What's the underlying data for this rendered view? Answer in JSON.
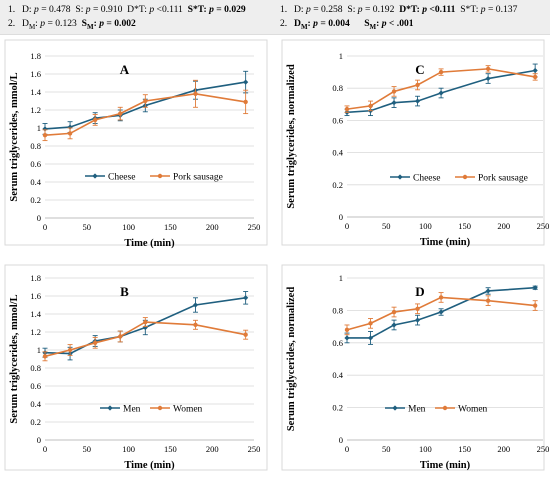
{
  "header": {
    "left": [
      {
        "num": "1.",
        "parts": [
          {
            "t": "D: "
          },
          {
            "t": "p",
            "i": true
          },
          {
            "t": " = 0.478  S: "
          },
          {
            "t": "p",
            "i": true
          },
          {
            "t": " = 0.910  D*T: "
          },
          {
            "t": "p",
            "i": true
          },
          {
            "t": " <0.111  "
          },
          {
            "t": "S*T: ",
            "b": true
          },
          {
            "t": "p",
            "b": true,
            "i": true
          },
          {
            "t": " = 0.029",
            "b": true
          }
        ]
      },
      {
        "num": "2.",
        "parts": [
          {
            "t": "D"
          },
          {
            "t": "M",
            "sub": true
          },
          {
            "t": ": "
          },
          {
            "t": "p",
            "i": true
          },
          {
            "t": " = 0.123  "
          },
          {
            "t": "S",
            "b": true
          },
          {
            "t": "M",
            "b": true,
            "sub": true
          },
          {
            "t": ": ",
            "b": true
          },
          {
            "t": "p",
            "b": true,
            "i": true
          },
          {
            "t": " = 0.002",
            "b": true
          }
        ]
      }
    ],
    "right": [
      {
        "num": "1.",
        "parts": [
          {
            "t": "D: "
          },
          {
            "t": "p",
            "i": true
          },
          {
            "t": " = 0.258  S: "
          },
          {
            "t": "p",
            "i": true
          },
          {
            "t": " = 0.192  "
          },
          {
            "t": "D*T: ",
            "b": true
          },
          {
            "t": "p",
            "b": true,
            "i": true
          },
          {
            "t": " <0.111",
            "b": true
          },
          {
            "t": "  S*T: "
          },
          {
            "t": "p",
            "i": true
          },
          {
            "t": " = 0.137"
          }
        ]
      },
      {
        "num": "2.",
        "parts": [
          {
            "t": "D",
            "b": true
          },
          {
            "t": "M",
            "b": true,
            "sub": true
          },
          {
            "t": ": ",
            "b": true
          },
          {
            "t": "p",
            "b": true,
            "i": true
          },
          {
            "t": " = 0.004",
            "b": true
          },
          {
            "t": "      "
          },
          {
            "t": "S",
            "b": true
          },
          {
            "t": "M",
            "b": true,
            "sub": true
          },
          {
            "t": ": ",
            "b": true
          },
          {
            "t": "p",
            "b": true,
            "i": true
          },
          {
            "t": " < .001",
            "b": true
          }
        ]
      }
    ]
  },
  "chart_data": [
    {
      "panel": "A",
      "type": "line",
      "ylabel": "Serum triglycerides, mmol/L",
      "xlabel": "Time (min)",
      "xlim": [
        0,
        250
      ],
      "xticks": [
        0,
        50,
        100,
        150,
        200,
        250
      ],
      "ylim": [
        0,
        1.8
      ],
      "yticks": [
        0,
        0.2,
        0.4,
        0.6,
        0.8,
        1.0,
        1.2,
        1.4,
        1.6,
        1.8
      ],
      "ytick_labels": [
        "0",
        "0.2",
        "0.4",
        "0.6",
        "0.8",
        "1",
        "1.2",
        "1.4",
        "1.6",
        "1.8"
      ],
      "legend": "inside-center",
      "series": [
        {
          "name": "Cheese",
          "color": "#1f5f7f",
          "marker": "diamond",
          "x": [
            0,
            30,
            60,
            90,
            120,
            180,
            240
          ],
          "y": [
            0.99,
            1.01,
            1.11,
            1.14,
            1.25,
            1.42,
            1.51
          ],
          "err": [
            0.06,
            0.06,
            0.06,
            0.06,
            0.07,
            0.1,
            0.12
          ]
        },
        {
          "name": "Pork sausage",
          "color": "#e07b39",
          "marker": "circle",
          "x": [
            0,
            30,
            60,
            90,
            120,
            180,
            240
          ],
          "y": [
            0.92,
            0.94,
            1.09,
            1.16,
            1.3,
            1.38,
            1.29
          ],
          "err": [
            0.06,
            0.06,
            0.06,
            0.07,
            0.07,
            0.15,
            0.13
          ]
        }
      ]
    },
    {
      "panel": "C",
      "type": "line",
      "ylabel": "Serum triglycerides, normalized",
      "xlabel": "Time (min)",
      "xlim": [
        0,
        250
      ],
      "xticks": [
        0,
        50,
        100,
        150,
        200,
        250
      ],
      "ylim": [
        0,
        1
      ],
      "yticks": [
        0,
        0.2,
        0.4,
        0.6,
        0.8,
        1.0
      ],
      "ytick_labels": [
        "0",
        "0.2",
        "0.4",
        "0.6",
        "0.8",
        "1"
      ],
      "legend": "inside-center",
      "series": [
        {
          "name": "Cheese",
          "color": "#1f5f7f",
          "marker": "diamond",
          "x": [
            0,
            30,
            60,
            90,
            120,
            180,
            240
          ],
          "y": [
            0.65,
            0.66,
            0.71,
            0.72,
            0.77,
            0.86,
            0.91
          ],
          "err": [
            0.02,
            0.03,
            0.03,
            0.03,
            0.03,
            0.03,
            0.04
          ]
        },
        {
          "name": "Pork sausage",
          "color": "#e07b39",
          "marker": "circle",
          "x": [
            0,
            30,
            60,
            90,
            120,
            180,
            240
          ],
          "y": [
            0.67,
            0.69,
            0.78,
            0.82,
            0.9,
            0.92,
            0.87
          ],
          "err": [
            0.02,
            0.03,
            0.03,
            0.03,
            0.02,
            0.02,
            0.02
          ]
        }
      ]
    },
    {
      "panel": "B",
      "type": "line",
      "ylabel": "Serum triglycerides, mmol/L",
      "xlabel": "Time (min)",
      "xlim": [
        0,
        250
      ],
      "xticks": [
        0,
        50,
        100,
        150,
        200,
        250
      ],
      "ylim": [
        0,
        1.8
      ],
      "yticks": [
        0,
        0.2,
        0.4,
        0.6,
        0.8,
        1.0,
        1.2,
        1.4,
        1.6,
        1.8
      ],
      "ytick_labels": [
        "0",
        "0.2",
        "0.4",
        "0.6",
        "0.8",
        "1",
        "1.2",
        "1.4",
        "1.6",
        "1.8"
      ],
      "legend": "inside-bottom-center",
      "series": [
        {
          "name": "Men",
          "color": "#1f5f7f",
          "marker": "diamond",
          "x": [
            0,
            30,
            60,
            90,
            120,
            180,
            240
          ],
          "y": [
            0.97,
            0.96,
            1.1,
            1.15,
            1.25,
            1.5,
            1.58
          ],
          "err": [
            0.05,
            0.07,
            0.06,
            0.06,
            0.08,
            0.08,
            0.07
          ]
        },
        {
          "name": "Women",
          "color": "#e07b39",
          "marker": "circle",
          "x": [
            0,
            30,
            60,
            90,
            120,
            180,
            240
          ],
          "y": [
            0.93,
            1.0,
            1.08,
            1.15,
            1.31,
            1.28,
            1.17
          ],
          "err": [
            0.05,
            0.06,
            0.06,
            0.06,
            0.05,
            0.05,
            0.05
          ]
        }
      ]
    },
    {
      "panel": "D",
      "type": "line",
      "ylabel": "Serum triglycerides, normalized",
      "xlabel": "Time (min)",
      "xlim": [
        0,
        250
      ],
      "xticks": [
        0,
        50,
        100,
        150,
        200,
        250
      ],
      "ylim": [
        0,
        1
      ],
      "yticks": [
        0,
        0.2,
        0.4,
        0.6,
        0.8,
        1.0
      ],
      "ytick_labels": [
        "0",
        "0.2",
        "0.4",
        "0.6",
        "0.8",
        "1"
      ],
      "legend": "inside-bottom-center",
      "series": [
        {
          "name": "Men",
          "color": "#1f5f7f",
          "marker": "diamond",
          "x": [
            0,
            30,
            60,
            90,
            120,
            180,
            240
          ],
          "y": [
            0.63,
            0.63,
            0.71,
            0.74,
            0.79,
            0.92,
            0.94
          ],
          "err": [
            0.03,
            0.04,
            0.03,
            0.03,
            0.02,
            0.02,
            0.01
          ]
        },
        {
          "name": "Women",
          "color": "#e07b39",
          "marker": "circle",
          "x": [
            0,
            30,
            60,
            90,
            120,
            180,
            240
          ],
          "y": [
            0.68,
            0.72,
            0.79,
            0.81,
            0.88,
            0.86,
            0.83
          ],
          "err": [
            0.03,
            0.03,
            0.03,
            0.03,
            0.03,
            0.03,
            0.03
          ]
        }
      ]
    }
  ]
}
